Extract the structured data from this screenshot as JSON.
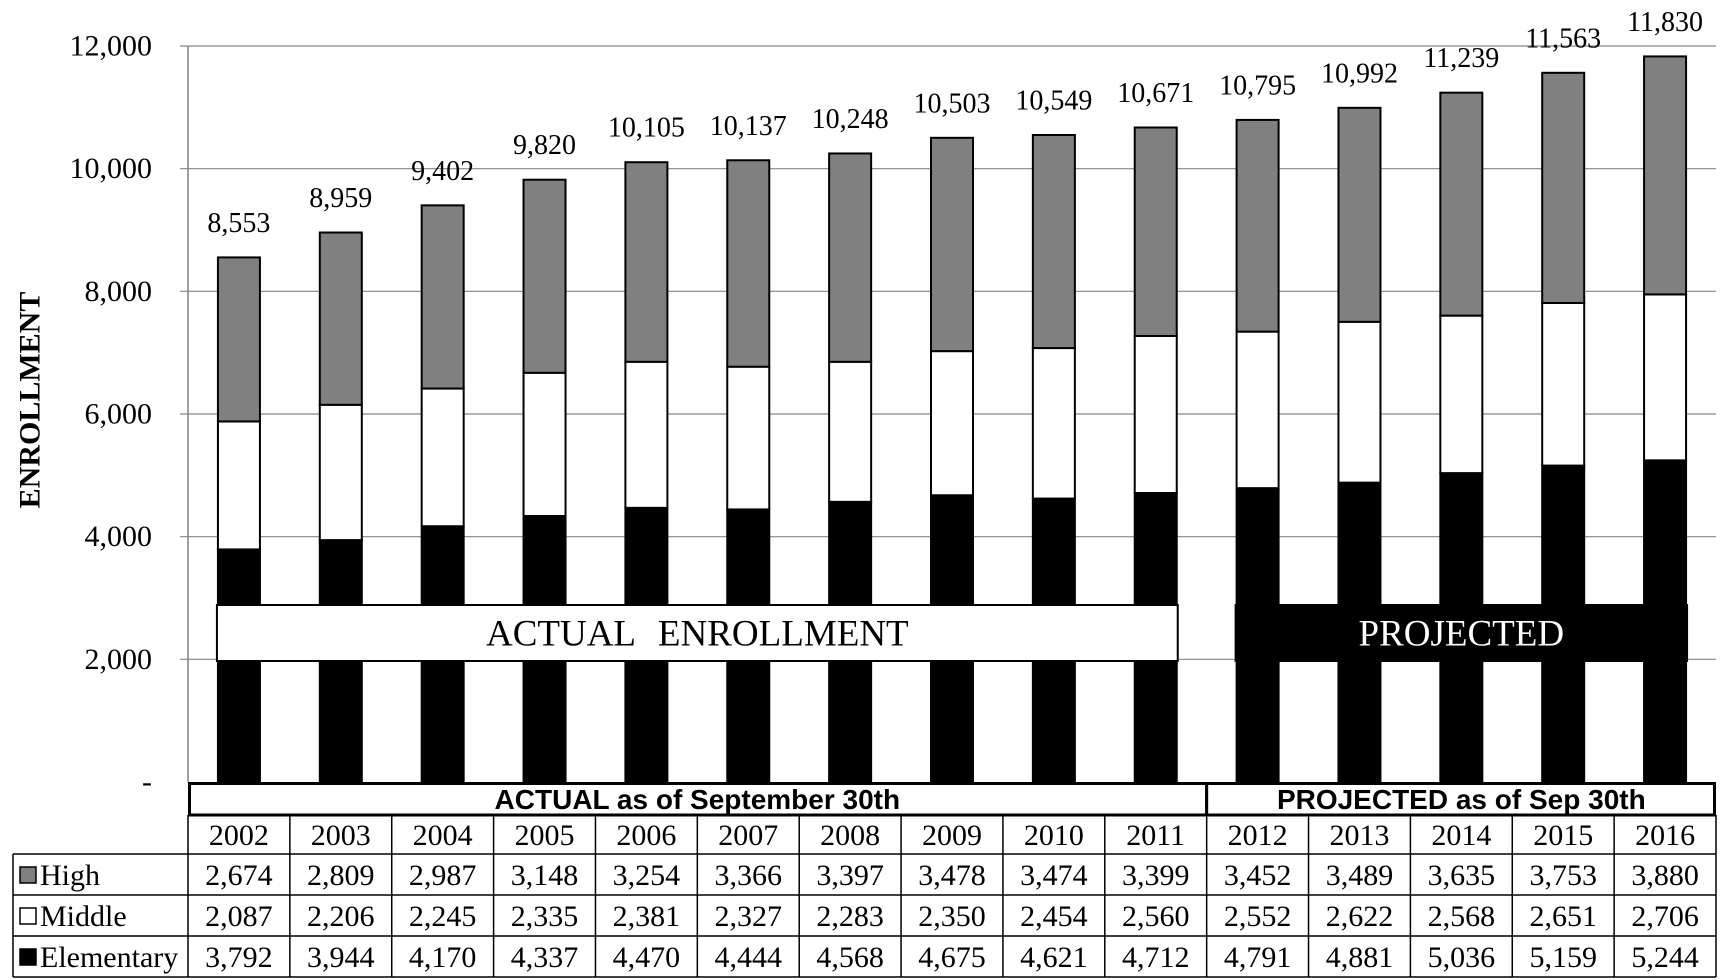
{
  "chart_data": {
    "type": "bar",
    "stacked": true,
    "categories": [
      "2002",
      "2003",
      "2004",
      "2005",
      "2006",
      "2007",
      "2008",
      "2009",
      "2010",
      "2011",
      "2012",
      "2013",
      "2014",
      "2015",
      "2016"
    ],
    "series": [
      {
        "name": "High",
        "color": "#808080",
        "values": [
          2674,
          2809,
          2987,
          3148,
          3254,
          3366,
          3397,
          3478,
          3474,
          3399,
          3452,
          3489,
          3635,
          3753,
          3880
        ]
      },
      {
        "name": "Middle",
        "color": "#ffffff",
        "values": [
          2087,
          2206,
          2245,
          2335,
          2381,
          2327,
          2283,
          2350,
          2454,
          2560,
          2552,
          2622,
          2568,
          2651,
          2706
        ]
      },
      {
        "name": "Elementary",
        "color": "#000000",
        "values": [
          3792,
          3944,
          4170,
          4337,
          4470,
          4444,
          4568,
          4675,
          4621,
          4712,
          4791,
          4881,
          5036,
          5159,
          5244
        ]
      }
    ],
    "totals": [
      8553,
      8959,
      9402,
      9820,
      10105,
      10137,
      10248,
      10503,
      10549,
      10671,
      10795,
      10992,
      11239,
      11563,
      11830
    ],
    "ylabel": "ENROLLMENT",
    "ylim": [
      0,
      12000
    ],
    "yticks": [
      0,
      2000,
      4000,
      6000,
      8000,
      10000,
      12000
    ],
    "ytick_labels": [
      "-",
      "2,000",
      "4,000",
      "6,000",
      "8,000",
      "10,000",
      "12,000"
    ],
    "grid": true,
    "legend": "bottom-left",
    "annotations": [
      {
        "text": "ACTUAL ENROLLMENT",
        "fill": "#ffffff",
        "text_color": "#000000",
        "from": "2002",
        "to": "2011"
      },
      {
        "text": "PROJECTED",
        "fill": "#000000",
        "text_color": "#ffffff",
        "from": "2012",
        "to": "2016"
      }
    ],
    "data_table": {
      "groups": [
        {
          "label": "ACTUAL as of September 30th",
          "from": "2002",
          "to": "2011"
        },
        {
          "label": "PROJECTED as of Sep 30th",
          "from": "2012",
          "to": "2016"
        }
      ]
    }
  }
}
